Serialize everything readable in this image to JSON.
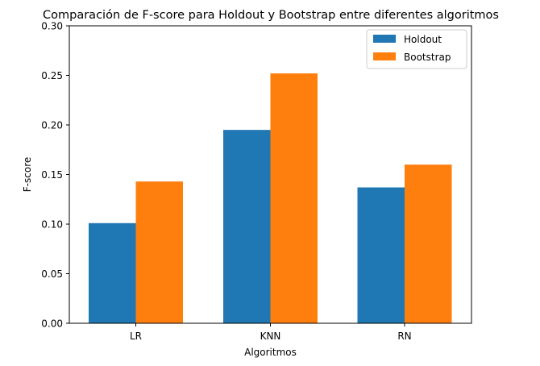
{
  "chart_data": {
    "type": "bar",
    "title": "Comparación de F-score para Holdout y Bootstrap entre diferentes algoritmos",
    "xlabel": "Algoritmos",
    "ylabel": "F-score",
    "categories": [
      "LR",
      "KNN",
      "RN"
    ],
    "series": [
      {
        "name": "Holdout",
        "values": [
          0.101,
          0.195,
          0.137
        ],
        "color": "#1f77b4"
      },
      {
        "name": "Bootstrap",
        "values": [
          0.143,
          0.252,
          0.16
        ],
        "color": "#ff7f0e"
      }
    ],
    "ylim": [
      0,
      0.3
    ],
    "yticks": [
      "0.00",
      "0.05",
      "0.10",
      "0.15",
      "0.20",
      "0.25",
      "0.30"
    ],
    "grid": false,
    "legend_position": "top-right"
  }
}
